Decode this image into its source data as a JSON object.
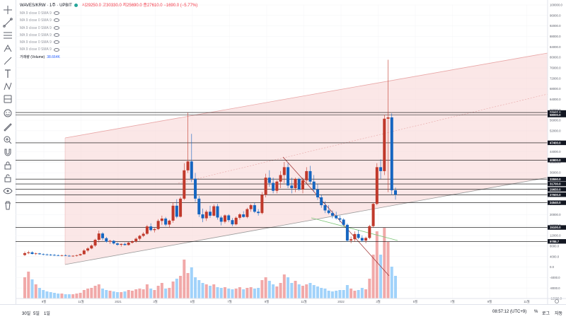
{
  "legend": {
    "symbol": "WAVES/KRW · 1주 · UPBIT",
    "ohlc": "시29250.0 고30330.0 저25690.0 종27610.0 −1690.0 (−5.77%)",
    "ma_lines": [
      "MA 9 close 0 SMA 9",
      "MA 9 close 0 SMA 9",
      "MA 9 close 0 SMA 9",
      "MA 9 close 0 SMA 9",
      "MA 9 close 0 SMA 9",
      "MA 9 close 0 SMA 9"
    ],
    "volume_label": "거래량 (Volume)",
    "volume_value": "38.664K"
  },
  "toolbar": {
    "icons": [
      "crosshair-icon",
      "trend-line-icon",
      "horizontal-lines-icon",
      "pitchfork-icon",
      "brush-icon",
      "text-icon",
      "pattern-icon",
      "projection-icon",
      "emoji-icon",
      "ruler-icon",
      "zoom-in-icon",
      "magnet-icon",
      "lock-icon",
      "lock-drawings-icon",
      "eye-icon",
      "trash-icon"
    ]
  },
  "bottom": {
    "timeframes": [
      "30일",
      "5일",
      "1일"
    ],
    "clock": "08:57:12 (UTC+9)",
    "percent": "%",
    "log": "로그",
    "auto": "자동"
  },
  "colors": {
    "up": "#c0392b",
    "down": "#1565c0",
    "up_volume": "#ef9a9a",
    "down_volume": "#90caf9",
    "channel_fill": "#f8d7d7",
    "channel_line": "#e8a6a6",
    "level_line": "#000000",
    "trendline": "#a33a3a",
    "green_line": "#7cc576"
  },
  "chart_data": {
    "type": "candlestick",
    "xlabels": [
      "9월",
      "11월",
      "2021",
      "3월",
      "5월",
      "7월",
      "9월",
      "11월",
      "2022",
      "3월",
      "5월",
      "7월",
      "9월",
      "11월"
    ],
    "y_ticks": [
      100000,
      96000,
      92000,
      88000,
      84000,
      80000,
      76000,
      72000,
      68000,
      64000,
      60000,
      56000,
      52000,
      48000,
      44000,
      40000,
      36000,
      32000,
      28000,
      24000,
      20000,
      16000,
      12000,
      8000,
      4000,
      0,
      -4000,
      -8000,
      -12000
    ],
    "level_labels": [
      58965.0,
      58000.0,
      47400.0,
      40800.0,
      33550.0,
      31700.0,
      29650.0,
      27610.0,
      27600.0,
      24540.0,
      15100.0,
      9788.7
    ],
    "ylim": [
      -12000,
      100000
    ],
    "candles": [
      [
        4600,
        5900,
        4200,
        5300,
        30
      ],
      [
        5300,
        6200,
        4900,
        5600,
        38
      ],
      [
        5600,
        6000,
        4800,
        5000,
        27
      ],
      [
        5000,
        5500,
        4600,
        5200,
        20
      ],
      [
        5200,
        5400,
        4700,
        4900,
        15
      ],
      [
        4900,
        5200,
        4500,
        4800,
        12
      ],
      [
        4800,
        5100,
        4400,
        4700,
        10
      ],
      [
        4700,
        5000,
        4300,
        4600,
        9
      ],
      [
        4600,
        5000,
        4200,
        4500,
        8
      ],
      [
        4500,
        4800,
        4200,
        4400,
        7
      ],
      [
        4400,
        4700,
        4100,
        4500,
        7
      ],
      [
        4500,
        4800,
        4200,
        4300,
        6
      ],
      [
        4300,
        4600,
        4000,
        4200,
        6
      ],
      [
        4200,
        4500,
        3900,
        4300,
        6
      ],
      [
        4300,
        4700,
        4000,
        4500,
        7
      ],
      [
        4500,
        5100,
        4300,
        4900,
        8
      ],
      [
        4900,
        6800,
        4700,
        6300,
        12
      ],
      [
        6300,
        7600,
        5700,
        7100,
        14
      ],
      [
        7100,
        8600,
        6800,
        8200,
        15
      ],
      [
        8200,
        10800,
        7700,
        10400,
        18
      ],
      [
        10400,
        13900,
        9400,
        12800,
        20
      ],
      [
        12800,
        13300,
        10200,
        11000,
        14
      ],
      [
        11000,
        11500,
        9300,
        9700,
        12
      ],
      [
        9700,
        10400,
        8800,
        10000,
        11
      ],
      [
        10000,
        10300,
        8600,
        9000,
        10
      ],
      [
        9000,
        9400,
        8100,
        8500,
        9
      ],
      [
        8500,
        9000,
        7800,
        8800,
        9
      ],
      [
        8800,
        9300,
        8200,
        8400,
        10
      ],
      [
        8400,
        9600,
        8200,
        9300,
        12
      ],
      [
        9300,
        10200,
        8900,
        9800,
        11
      ],
      [
        9800,
        11300,
        9300,
        10800,
        13
      ],
      [
        10800,
        12300,
        10100,
        11900,
        14
      ],
      [
        11900,
        13300,
        11400,
        12700,
        13
      ],
      [
        12700,
        16100,
        12300,
        15500,
        20
      ],
      [
        15500,
        16700,
        13600,
        14100,
        14
      ],
      [
        14100,
        14900,
        13200,
        14500,
        12
      ],
      [
        14500,
        18300,
        14100,
        17600,
        18
      ],
      [
        17600,
        19600,
        16100,
        18500,
        22
      ],
      [
        18500,
        19100,
        15600,
        16200,
        14
      ],
      [
        16200,
        18100,
        15100,
        17700,
        15
      ],
      [
        17700,
        24700,
        16900,
        23400,
        24
      ],
      [
        23400,
        25900,
        18600,
        19200,
        28
      ],
      [
        19200,
        26800,
        18900,
        26100,
        32
      ],
      [
        26100,
        39600,
        25600,
        36900,
        55
      ],
      [
        36900,
        58900,
        35900,
        40300,
        36
      ],
      [
        40300,
        50800,
        32400,
        33700,
        44
      ],
      [
        33700,
        35900,
        24900,
        26100,
        30
      ],
      [
        26100,
        27100,
        19100,
        20100,
        26
      ],
      [
        20100,
        22300,
        17100,
        18600,
        22
      ],
      [
        18600,
        21800,
        17600,
        21100,
        20
      ],
      [
        21100,
        23400,
        18800,
        19600,
        18
      ],
      [
        19600,
        23900,
        19300,
        23200,
        20
      ],
      [
        23200,
        24100,
        18100,
        18900,
        16
      ],
      [
        18900,
        19600,
        15900,
        17300,
        15
      ],
      [
        17300,
        20100,
        16600,
        19700,
        16
      ],
      [
        19700,
        20200,
        17100,
        17900,
        14
      ],
      [
        17900,
        18700,
        15600,
        16300,
        13
      ],
      [
        16300,
        19300,
        15900,
        18800,
        14
      ],
      [
        18800,
        20600,
        18100,
        20100,
        16
      ],
      [
        20100,
        21300,
        18800,
        19100,
        13
      ],
      [
        19100,
        22600,
        18600,
        22100,
        15
      ],
      [
        22100,
        24100,
        21100,
        23600,
        16
      ],
      [
        23600,
        24600,
        20600,
        21100,
        14
      ],
      [
        21100,
        22100,
        19600,
        20600,
        15
      ],
      [
        20600,
        28600,
        20100,
        27600,
        26
      ],
      [
        27600,
        35600,
        26600,
        34100,
        30
      ],
      [
        34100,
        36900,
        30600,
        32100,
        25
      ],
      [
        32100,
        34100,
        28100,
        29100,
        20
      ],
      [
        29100,
        33100,
        28100,
        32600,
        17
      ],
      [
        32600,
        36600,
        30100,
        35100,
        22
      ],
      [
        35100,
        40100,
        32100,
        38100,
        34
      ],
      [
        38100,
        39600,
        30100,
        31100,
        30
      ],
      [
        31100,
        34100,
        28100,
        30100,
        22
      ],
      [
        30100,
        34100,
        28600,
        33600,
        25
      ],
      [
        33600,
        34100,
        29100,
        29600,
        20
      ],
      [
        29600,
        34100,
        28100,
        33100,
        18
      ],
      [
        33100,
        38100,
        32100,
        36600,
        20
      ],
      [
        36600,
        38600,
        31600,
        32600,
        22
      ],
      [
        32600,
        35100,
        28600,
        29600,
        19
      ],
      [
        29600,
        31600,
        25600,
        26600,
        17
      ],
      [
        26600,
        27600,
        22600,
        23600,
        15
      ],
      [
        23600,
        25100,
        20600,
        21600,
        14
      ],
      [
        21600,
        23600,
        20100,
        20600,
        11
      ],
      [
        20600,
        21600,
        18600,
        19600,
        10
      ],
      [
        19600,
        21100,
        18100,
        18600,
        11
      ],
      [
        18600,
        19600,
        17100,
        18100,
        12
      ],
      [
        18100,
        18600,
        15600,
        16100,
        12
      ],
      [
        16100,
        16600,
        9600,
        10100,
        19
      ],
      [
        10100,
        11600,
        9100,
        10600,
        14
      ],
      [
        10600,
        13600,
        9600,
        12600,
        11
      ],
      [
        12600,
        14100,
        10600,
        11100,
        12
      ],
      [
        11100,
        12100,
        9600,
        10100,
        15
      ],
      [
        10100,
        11600,
        9100,
        11100,
        13
      ],
      [
        11100,
        16100,
        10600,
        15600,
        28
      ],
      [
        15600,
        24600,
        15100,
        24100,
        62
      ],
      [
        24100,
        39600,
        23600,
        38100,
        95
      ],
      [
        38100,
        41100,
        33600,
        36600,
        62
      ],
      [
        36600,
        58100,
        35100,
        56600,
        100
      ],
      [
        56600,
        79100,
        28600,
        57100,
        80
      ],
      [
        57100,
        58600,
        27600,
        29300,
        45
      ],
      [
        29300,
        30300,
        25700,
        27600,
        32
      ]
    ]
  }
}
